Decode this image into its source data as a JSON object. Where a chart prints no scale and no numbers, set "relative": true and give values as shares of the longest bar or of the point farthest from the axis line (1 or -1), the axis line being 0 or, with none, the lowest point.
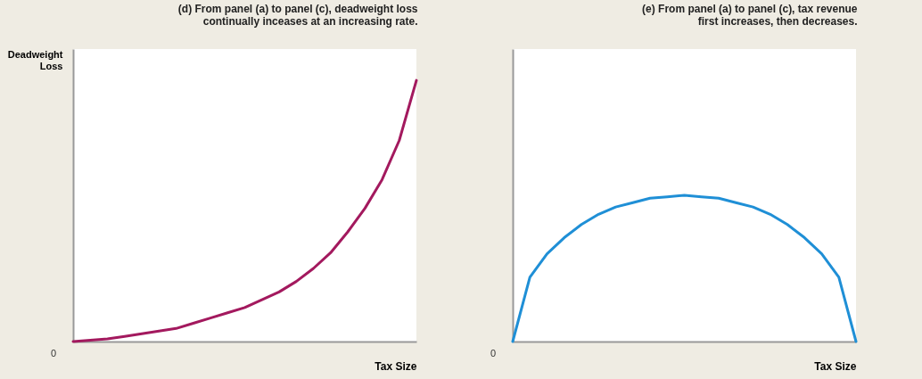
{
  "chart_data": [
    {
      "type": "line",
      "title": "(d) From panel (a) to panel (c), deadweight loss\ncontinually inceases at an increasing rate.",
      "ylabel": "Deadweight\nLoss",
      "xlabel": "Tax Size",
      "annotations": [
        "0"
      ],
      "relative": true,
      "categories": [
        null,
        null,
        null,
        null,
        null,
        null,
        null,
        null,
        null,
        null,
        null,
        null,
        null,
        null,
        null,
        null,
        null,
        null,
        null,
        null,
        null
      ],
      "series": [
        {
          "color": "#a3195e",
          "values": [
            0,
            0.005,
            0.01,
            0.02,
            0.03,
            0.04,
            0.05,
            0.07,
            0.09,
            0.11,
            0.13,
            0.16,
            0.19,
            0.23,
            0.28,
            0.34,
            0.42,
            0.51,
            0.62,
            0.77,
            1
          ]
        }
      ],
      "grid": false,
      "legend": false,
      "marker": "none",
      "line_style": "solid",
      "tick_labels": false
    },
    {
      "type": "line",
      "title": "(e) From panel (a) to panel (c), tax revenue\nfirst increases, then decreases.",
      "xlabel": "Tax Size",
      "annotations": [
        "0"
      ],
      "relative": true,
      "categories": [
        null,
        null,
        null,
        null,
        null,
        null,
        null,
        null,
        null,
        null,
        null,
        null,
        null,
        null,
        null,
        null,
        null,
        null,
        null,
        null,
        null
      ],
      "series": [
        {
          "color": "#1f8fd6",
          "values": [
            0,
            0.44,
            0.6,
            0.71,
            0.8,
            0.87,
            0.92,
            0.95,
            0.98,
            0.99,
            1,
            0.99,
            0.98,
            0.95,
            0.92,
            0.87,
            0.8,
            0.71,
            0.6,
            0.44,
            0
          ]
        }
      ],
      "grid": false,
      "legend": false,
      "marker": "none",
      "line_style": "solid",
      "tick_labels": false
    }
  ]
}
